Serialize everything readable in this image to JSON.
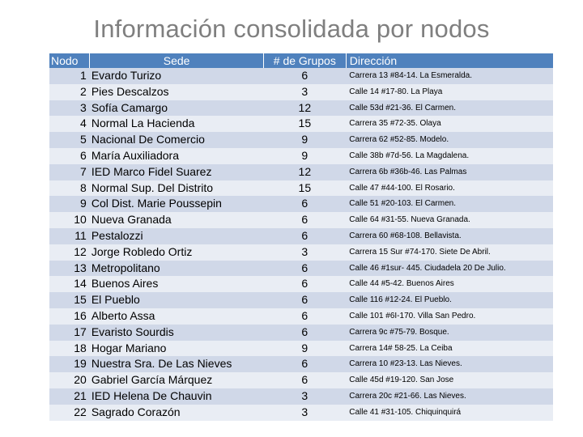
{
  "title": "Información consolidada por nodos",
  "headers": {
    "nodo": "Nodo",
    "sede": "Sede",
    "grupos": "# de Grupos",
    "direccion": "Dirección"
  },
  "rows": [
    {
      "nodo": "1",
      "sede": "Evardo Turizo",
      "grupos": "6",
      "direccion": "Carrera 13 #84-14. La Esmeralda."
    },
    {
      "nodo": "2",
      "sede": "Pies Descalzos",
      "grupos": "3",
      "direccion": "Calle 14 #17-80. La Playa"
    },
    {
      "nodo": "3",
      "sede": "Sofía Camargo",
      "grupos": "12",
      "direccion": "Calle 53d #21-36. El Carmen."
    },
    {
      "nodo": "4",
      "sede": "Normal La Hacienda",
      "grupos": "15",
      "direccion": "Carrera 35 #72-35. Olaya"
    },
    {
      "nodo": "5",
      "sede": "Nacional De Comercio",
      "grupos": "9",
      "direccion": "Carrera 62 #52-85. Modelo."
    },
    {
      "nodo": "6",
      "sede": "María Auxiliadora",
      "grupos": "9",
      "direccion": "Calle 38b #7d-56. La Magdalena."
    },
    {
      "nodo": "7",
      "sede": "IED Marco Fidel Suarez",
      "grupos": "12",
      "direccion": "Carrera 6b #36b-46. Las Palmas"
    },
    {
      "nodo": "8",
      "sede": "Normal Sup. Del Distrito",
      "grupos": "15",
      "direccion": "Calle 47 #44-100. El Rosario."
    },
    {
      "nodo": "9",
      "sede": "Col Dist. Marie Poussepin",
      "grupos": "6",
      "direccion": "Calle 51 #20-103. El Carmen."
    },
    {
      "nodo": "10",
      "sede": "Nueva Granada",
      "grupos": "6",
      "direccion": "Calle 64 #31-55. Nueva Granada."
    },
    {
      "nodo": "11",
      "sede": "Pestalozzi",
      "grupos": "6",
      "direccion": "Carrera 60 #68-108. Bellavista."
    },
    {
      "nodo": "12",
      "sede": "Jorge Robledo Ortiz",
      "grupos": "3",
      "direccion": "Carrera 15 Sur #74-170. Siete De Abril."
    },
    {
      "nodo": "13",
      "sede": "Metropolitano",
      "grupos": "6",
      "direccion": "Calle 46 #1sur- 445. Ciudadela 20 De Julio."
    },
    {
      "nodo": "14",
      "sede": "Buenos Aires",
      "grupos": "6",
      "direccion": "Calle 44 #5-42. Buenos Aires"
    },
    {
      "nodo": "15",
      "sede": "El Pueblo",
      "grupos": "6",
      "direccion": "Calle 116 #12-24. El Pueblo."
    },
    {
      "nodo": "16",
      "sede": "Alberto Assa",
      "grupos": "6",
      "direccion": "Calle 101 #6I-170. Villa San Pedro."
    },
    {
      "nodo": "17",
      "sede": "Evaristo Sourdis",
      "grupos": "6",
      "direccion": "Carrera 9c #75-79. Bosque."
    },
    {
      "nodo": "18",
      "sede": "Hogar Mariano",
      "grupos": "9",
      "direccion": "Carrera 14# 58-25. La Ceiba"
    },
    {
      "nodo": "19",
      "sede": "Nuestra Sra. De Las Nieves",
      "grupos": "6",
      "direccion": "Carrera 10 #23-13. Las Nieves."
    },
    {
      "nodo": "20",
      "sede": "Gabriel García Márquez",
      "grupos": "6",
      "direccion": "Calle 45d #19-120. San Jose"
    },
    {
      "nodo": "21",
      "sede": "IED Helena De Chauvin",
      "grupos": "3",
      "direccion": "Carrera 20c #21-66. Las Nieves."
    },
    {
      "nodo": "22",
      "sede": "Sagrado Corazón",
      "grupos": "3",
      "direccion": "Calle 41 #31-105. Chiquinquirá"
    }
  ]
}
